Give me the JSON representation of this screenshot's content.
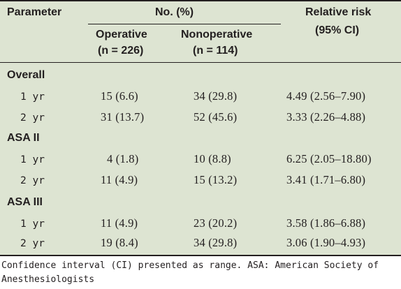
{
  "table": {
    "headers": {
      "parameter": "Parameter",
      "no_pct": "No. (%)",
      "relative_risk_line1": "Relative risk",
      "relative_risk_line2": "(95% CI)",
      "operative_line1": "Operative",
      "operative_line2": "(n = 226)",
      "nonoperative_line1": "Nonoperative",
      "nonoperative_line2": "(n = 114)"
    },
    "sections": [
      {
        "label": "Overall",
        "rows": [
          {
            "period": "1 yr",
            "operative": "15 (6.6)",
            "nonoperative": "34 (29.8)",
            "rr": "4.49 (2.56–7.90)"
          },
          {
            "period": "2 yr",
            "operative": "31 (13.7)",
            "nonoperative": "52 (45.6)",
            "rr": "3.33 (2.26–4.88)"
          }
        ]
      },
      {
        "label": "ASA II",
        "rows": [
          {
            "period": "1 yr",
            "operative": "4 (1.8)",
            "nonoperative": "10 (8.8)",
            "rr": "6.25 (2.05–18.80)"
          },
          {
            "period": "2 yr",
            "operative": "11 (4.9)",
            "nonoperative": "15 (13.2)",
            "rr": "3.41 (1.71–6.80)"
          }
        ]
      },
      {
        "label": "ASA III",
        "rows": [
          {
            "period": "1 yr",
            "operative": "11 (4.9)",
            "nonoperative": "23 (20.2)",
            "rr": "3.58 (1.86–6.88)"
          },
          {
            "period": "2 yr",
            "operative": "19 (8.4)",
            "nonoperative": "34 (29.8)",
            "rr": "3.06 (1.90–4.93)"
          }
        ]
      }
    ],
    "footnote_line1": "Confidence interval (CI) presented as range. ASA: American Society of",
    "footnote_line2": "Anesthesiologists"
  }
}
